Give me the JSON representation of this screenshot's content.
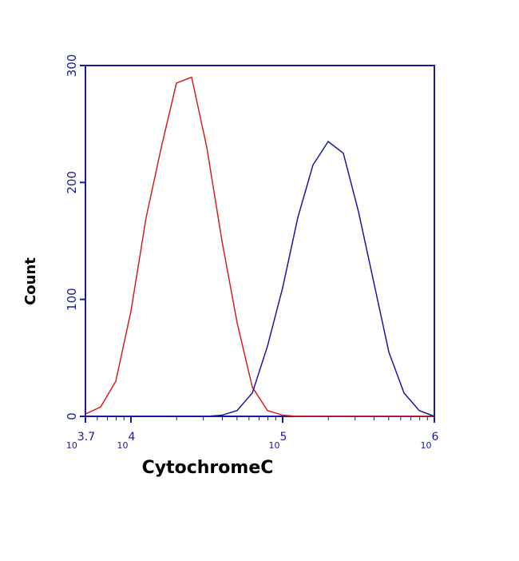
{
  "chart_data": {
    "type": "line",
    "y_label": "Count",
    "x_label": "CytochromeC",
    "x_log_scale": true,
    "x": [
      5012,
      6310,
      7943,
      10000,
      12589,
      15849,
      19953,
      25119,
      31623,
      39811,
      50119,
      63096,
      79433,
      100000,
      125893,
      158489,
      199526,
      251189,
      316228,
      398107,
      501187,
      630957,
      794328,
      1000000
    ],
    "series": [
      {
        "color": "#d42020",
        "values": [
          2,
          8,
          30,
          90,
          170,
          230,
          285,
          290,
          230,
          150,
          80,
          25,
          5,
          1,
          0,
          0,
          0,
          0,
          0,
          0,
          0,
          0,
          0,
          0
        ]
      },
      {
        "color": "#1a1aa0",
        "values": [
          0,
          0,
          0,
          0,
          0,
          0,
          0,
          0,
          0,
          1,
          5,
          20,
          60,
          110,
          170,
          215,
          235,
          225,
          175,
          115,
          55,
          20,
          5,
          0
        ]
      }
    ],
    "xlim": [
      5012,
      1000000
    ],
    "xticks": [
      {
        "value": 5012,
        "label": "10",
        "exponent": "3.7"
      },
      {
        "value": 10000,
        "label": "10",
        "exponent": "4"
      },
      {
        "value": 100000,
        "label": "10",
        "exponent": "5"
      },
      {
        "value": 1000000,
        "label": "10",
        "exponent": "6"
      }
    ],
    "ylim": [
      0,
      300
    ],
    "yticks": [
      0,
      100,
      200,
      300
    ]
  }
}
